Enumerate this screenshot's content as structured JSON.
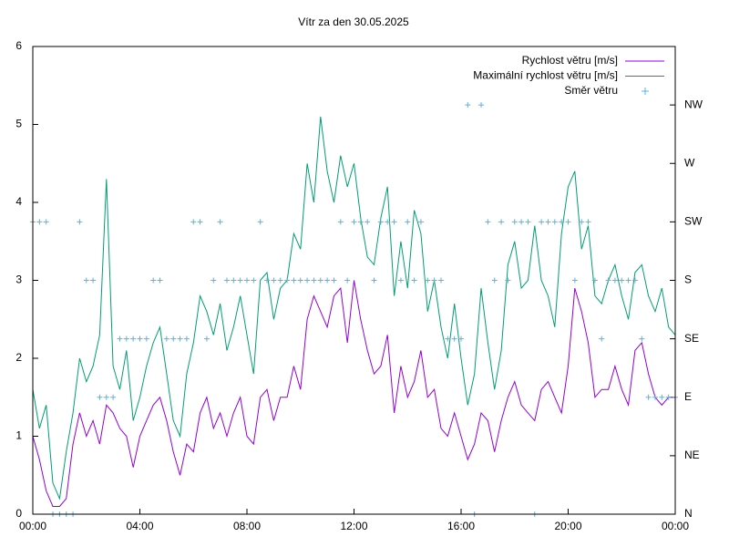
{
  "chart_data": {
    "type": "line",
    "title": "Vítr za den 30.05.2025",
    "x": [
      0,
      0.25,
      0.5,
      0.75,
      1,
      1.25,
      1.5,
      1.75,
      2,
      2.25,
      2.5,
      2.75,
      3,
      3.25,
      3.5,
      3.75,
      4,
      4.25,
      4.5,
      4.75,
      5,
      5.25,
      5.5,
      5.75,
      6,
      6.25,
      6.5,
      6.75,
      7,
      7.25,
      7.5,
      7.75,
      8,
      8.25,
      8.5,
      8.75,
      9,
      9.25,
      9.5,
      9.75,
      10,
      10.25,
      10.5,
      10.75,
      11,
      11.25,
      11.5,
      11.75,
      12,
      12.25,
      12.5,
      12.75,
      13,
      13.25,
      13.5,
      13.75,
      14,
      14.25,
      14.5,
      14.75,
      15,
      15.25,
      15.5,
      15.75,
      16,
      16.25,
      16.5,
      16.75,
      17,
      17.25,
      17.5,
      17.75,
      18,
      18.25,
      18.5,
      18.75,
      19,
      19.25,
      19.5,
      19.75,
      20,
      20.25,
      20.5,
      20.75,
      21,
      21.25,
      21.5,
      21.75,
      22,
      22.25,
      22.5,
      22.75,
      23,
      23.25,
      23.5,
      23.75,
      24
    ],
    "series": [
      {
        "name": "Rychlost větru [m/s]",
        "color": "#9400d3",
        "style": "line",
        "values": [
          1.0,
          0.7,
          0.3,
          0.1,
          0.1,
          0.2,
          0.9,
          1.3,
          1.0,
          1.2,
          0.9,
          1.4,
          1.3,
          1.1,
          1.0,
          0.6,
          1.0,
          1.2,
          1.4,
          1.5,
          1.2,
          0.8,
          0.5,
          0.9,
          0.8,
          1.3,
          1.5,
          1.1,
          1.3,
          1.0,
          1.3,
          1.5,
          1.0,
          0.9,
          1.5,
          1.6,
          1.2,
          1.5,
          1.5,
          1.9,
          1.6,
          2.5,
          2.8,
          2.6,
          2.4,
          2.8,
          2.9,
          2.2,
          3.0,
          2.5,
          2.1,
          1.8,
          1.9,
          2.3,
          1.3,
          1.9,
          1.5,
          1.7,
          2.1,
          1.5,
          1.6,
          1.1,
          1.0,
          1.3,
          1.0,
          0.7,
          0.9,
          1.3,
          1.2,
          0.8,
          1.2,
          1.5,
          1.7,
          1.4,
          1.3,
          1.2,
          1.6,
          1.7,
          1.5,
          1.3,
          1.9,
          2.9,
          2.6,
          2.2,
          1.5,
          1.6,
          1.6,
          1.9,
          1.6,
          1.4,
          2.1,
          2.2,
          1.8,
          1.5,
          1.4,
          1.5,
          1.5
        ]
      },
      {
        "name": "Maximální rychlost větru [m/s]",
        "color": "#009e73",
        "style": "line",
        "values": [
          1.6,
          1.1,
          1.4,
          0.4,
          0.2,
          0.8,
          1.3,
          2.0,
          1.7,
          1.9,
          2.3,
          4.3,
          1.9,
          1.6,
          2.1,
          1.2,
          1.5,
          1.9,
          2.2,
          2.4,
          1.8,
          1.2,
          1.0,
          1.8,
          2.2,
          2.8,
          2.6,
          2.3,
          2.7,
          2.1,
          2.4,
          2.8,
          2.3,
          1.8,
          3.0,
          3.1,
          2.5,
          2.9,
          3.0,
          3.6,
          3.4,
          4.5,
          4.0,
          5.1,
          4.4,
          4.0,
          4.6,
          4.2,
          4.5,
          3.8,
          3.3,
          3.2,
          3.8,
          4.2,
          2.8,
          3.5,
          2.9,
          3.9,
          3.6,
          2.6,
          3.0,
          2.4,
          2.0,
          2.7,
          2.0,
          1.4,
          1.8,
          2.9,
          2.2,
          1.6,
          2.1,
          3.2,
          3.5,
          2.9,
          3.0,
          3.7,
          3.0,
          2.8,
          2.4,
          3.6,
          4.2,
          4.4,
          3.4,
          3.7,
          2.8,
          2.7,
          3.0,
          3.2,
          2.8,
          2.5,
          3.1,
          3.2,
          2.8,
          2.6,
          2.9,
          2.4,
          2.3
        ]
      },
      {
        "name": "Směr větru",
        "color": "#56b4e9",
        "style": "points",
        "axis": "y2",
        "values": [
          225,
          225,
          225,
          0,
          0,
          0,
          0,
          225,
          180,
          180,
          90,
          90,
          90,
          135,
          135,
          135,
          135,
          135,
          180,
          180,
          135,
          135,
          135,
          135,
          225,
          225,
          135,
          180,
          225,
          180,
          180,
          180,
          180,
          180,
          225,
          180,
          180,
          180,
          180,
          180,
          180,
          180,
          180,
          180,
          180,
          180,
          225,
          180,
          225,
          225,
          225,
          180,
          225,
          225,
          225,
          180,
          225,
          180,
          225,
          180,
          180,
          180,
          135,
          135,
          135,
          315,
          0,
          315,
          225,
          180,
          225,
          180,
          225,
          225,
          225,
          0,
          225,
          225,
          225,
          225,
          225,
          180,
          225,
          225,
          180,
          135,
          180,
          180,
          180,
          180,
          180,
          135,
          90,
          90,
          90,
          90,
          90
        ]
      }
    ],
    "xlim": [
      0,
      24
    ],
    "xticks": [
      {
        "value": 0,
        "label": "00:00"
      },
      {
        "value": 4,
        "label": "04:00"
      },
      {
        "value": 8,
        "label": "08:00"
      },
      {
        "value": 12,
        "label": "12:00"
      },
      {
        "value": 16,
        "label": "16:00"
      },
      {
        "value": 20,
        "label": "20:00"
      },
      {
        "value": 24,
        "label": "00:00"
      }
    ],
    "ylim": [
      0,
      6
    ],
    "yticks": [
      0,
      1,
      2,
      3,
      4,
      5,
      6
    ],
    "y2lim": [
      0,
      360
    ],
    "y2ticks": [
      {
        "value": 0,
        "label": "N"
      },
      {
        "value": 45,
        "label": "NE"
      },
      {
        "value": 90,
        "label": "E"
      },
      {
        "value": 135,
        "label": "SE"
      },
      {
        "value": 180,
        "label": "S"
      },
      {
        "value": 225,
        "label": "SW"
      },
      {
        "value": 270,
        "label": "W"
      },
      {
        "value": 315,
        "label": "NW"
      }
    ],
    "legend": "top-right"
  }
}
